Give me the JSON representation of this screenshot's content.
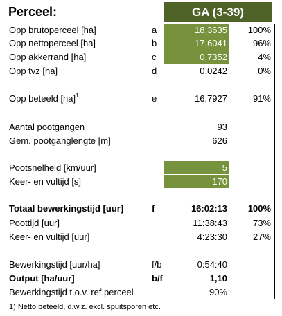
{
  "header": {
    "title": "Perceel:",
    "code": "GA (3-39)"
  },
  "rows": [
    {
      "label": "Opp brutoperceel [ha]",
      "code": "a",
      "value": "18,3635",
      "pct": "100%",
      "highlight": true
    },
    {
      "label": "Opp nettoperceel [ha]",
      "code": "b",
      "value": "17,6041",
      "pct": "96%",
      "highlight": true
    },
    {
      "label": "Opp akkerrand [ha]",
      "code": "c",
      "value": "0,7352",
      "pct": "4%",
      "highlight": true
    },
    {
      "label": "Opp tvz [ha]",
      "code": "d",
      "value": "0,0242",
      "pct": "0%"
    },
    {
      "label": "Opp beteeld [ha]",
      "sup": "1",
      "code": "e",
      "value": "16,7927",
      "pct": "91%"
    },
    {
      "label": "Aantal pootgangen",
      "value": "93"
    },
    {
      "label": "Gem. pootganglengte [m]",
      "value": "626"
    },
    {
      "label": "Pootsnelheid [km/uur]",
      "value": "5",
      "highlight": true
    },
    {
      "label": "Keer- en vultijd [s]",
      "value": "170",
      "highlight": true
    },
    {
      "label": "Totaal bewerkingstijd [uur]",
      "code": "f",
      "value": "16:02:13",
      "pct": "100%",
      "bold": true
    },
    {
      "label": "Poottijd [uur]",
      "value": "11:38:43",
      "pct": "73%"
    },
    {
      "label": "Keer- en vultijd [uur]",
      "value": "4:23:30",
      "pct": "27%"
    },
    {
      "label": "Bewerkingstijd [uur/ha]",
      "code": "f/b",
      "value": "0:54:40"
    },
    {
      "label": "Output [ha/uur]",
      "code": "b/f",
      "value": "1,10",
      "bold": true
    },
    {
      "label": "Bewerkingstijd t.o.v. ref.perceel",
      "value": "90%"
    }
  ],
  "footnote": "1) Netto beteeld, d.w.z. excl. spuitsporen etc."
}
